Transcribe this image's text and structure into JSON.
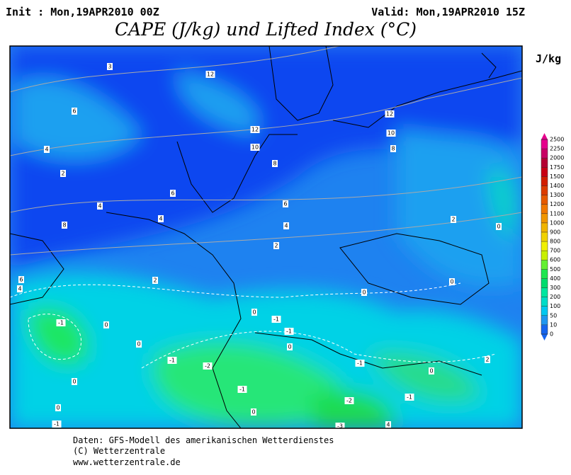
{
  "header": {
    "init": "Init : Mon,19APR2010 00Z",
    "valid": "Valid: Mon,19APR2010 15Z",
    "title": "CAPE (J/kg) und Lifted Index (°C)"
  },
  "colorbar": {
    "unit": "J/kg",
    "ticks": [
      0,
      10,
      50,
      100,
      200,
      300,
      400,
      500,
      600,
      700,
      800,
      900,
      1000,
      1100,
      1200,
      1300,
      1400,
      1500,
      1750,
      2000,
      2250,
      2500
    ],
    "colors": [
      "#1464f0",
      "#1e96f0",
      "#00c8f0",
      "#00dcc8",
      "#00e6a0",
      "#00dc6e",
      "#1ee650",
      "#64f032",
      "#c8f000",
      "#f0f000",
      "#f0d200",
      "#f0b400",
      "#f09600",
      "#f07800",
      "#e65a00",
      "#dc3c00",
      "#d21e00",
      "#c80014",
      "#b40032",
      "#c80064",
      "#e6008c"
    ]
  },
  "map": {
    "contour_labels": [
      "3",
      "12",
      "6",
      "12",
      "10",
      "12",
      "10",
      "8",
      "4",
      "2",
      "8",
      "6",
      "4",
      "6",
      "4",
      "8",
      "4",
      "2",
      "2",
      "0",
      "6",
      "4",
      "2",
      "0",
      "0",
      "-1",
      "0",
      "0",
      "-1",
      "-1",
      "0",
      "-1",
      "-2",
      "0",
      "-1",
      "0",
      "2",
      "0",
      "-1",
      "-1",
      "-2",
      "0",
      "0",
      "-1",
      "-3",
      "4"
    ]
  },
  "footer": {
    "line1": "Daten: GFS-Modell des amerikanischen Wetterdienstes",
    "line2": "(C) Wetterzentrale",
    "line3": "www.wetterzentrale.de"
  }
}
